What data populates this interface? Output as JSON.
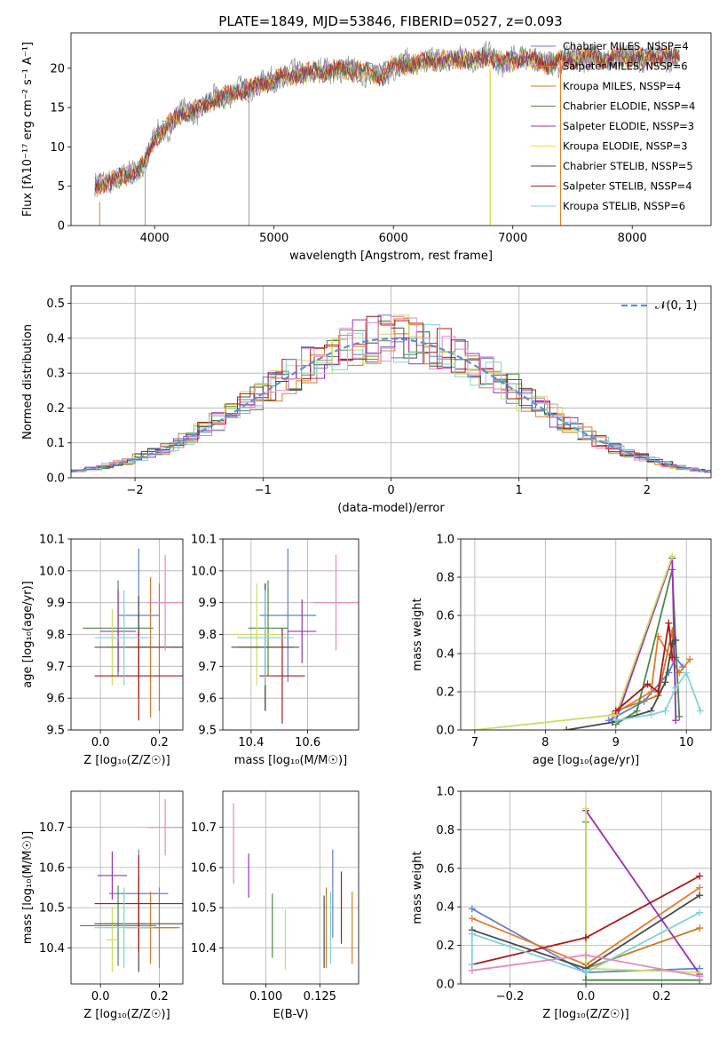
{
  "colors": [
    "#5b7fd6",
    "#e8792a",
    "#c87a1c",
    "#4c8a4c",
    "#9b30b8",
    "#e6e24e",
    "#4a4a4a",
    "#b01818",
    "#7fd3d8",
    "#e888c0",
    "#8a8a8a",
    "#c8e060"
  ],
  "chart_data": [
    {
      "type": "line",
      "title": "PLATE=1849, MJD=53846, FIBERID=0527, z=0.093",
      "xlabel": "wavelength [Angstrom, rest frame]",
      "ylabel": "Flux [fλ10⁻¹⁷ erg cm⁻² s⁻¹ A⁻¹]",
      "xlim": [
        3300,
        8660
      ],
      "ylim": [
        0,
        24.5
      ],
      "xticks": [
        4000,
        5000,
        6000,
        7000,
        8000
      ],
      "yticks": [
        0,
        5,
        10,
        15,
        20
      ],
      "xtick_labels": [
        "4000",
        "5000",
        "6000",
        "7000",
        "8000"
      ],
      "ytick_labels": [
        "0",
        "5",
        "10",
        "15",
        "20"
      ],
      "spectrum_x": [
        3500,
        3600,
        3700,
        3800,
        3900,
        4000,
        4100,
        4200,
        4300,
        4400,
        4500,
        4600,
        4700,
        4800,
        4900,
        5000,
        5100,
        5200,
        5300,
        5400,
        5500,
        5600,
        5700,
        5800,
        5900,
        6000,
        6100,
        6200,
        6300,
        6400,
        6500,
        6600,
        6700,
        6800,
        6900,
        7000,
        7100,
        7200,
        7300,
        7400,
        7500,
        7600,
        7700,
        7800,
        7900,
        8000,
        8100,
        8200,
        8300,
        8400
      ],
      "spectrum_y": [
        5,
        5.5,
        6,
        6.5,
        7.5,
        11,
        12.5,
        14,
        14.5,
        15,
        16,
        16.5,
        17,
        17.5,
        18,
        18.5,
        19,
        19.2,
        19.5,
        19.5,
        19.8,
        19.8,
        19.6,
        19.5,
        19,
        20.3,
        20.5,
        20.5,
        21,
        21,
        21,
        21.2,
        21.2,
        21.5,
        20.8,
        21,
        21.5,
        21,
        20.5,
        21,
        21.2,
        21.5,
        21.5,
        21,
        21.5,
        21.5,
        21.3,
        21.6,
        21.5,
        21.5
      ],
      "legend": [
        "Chabrier MILES, N<sub>SSP</sub>=4",
        "Salpeter MILES, N<sub>SSP</sub>=6",
        "Kroupa MILES, N<sub>SSP</sub>=4",
        "Chabrier ELODIE, N<sub>SSP</sub>=4",
        "Salpeter ELODIE, N<sub>SSP</sub>=3",
        "Kroupa ELODIE, N<sub>SSP</sub>=3",
        "Chabrier STELIB, N<sub>SSP</sub>=5",
        "Salpeter STELIB, N<sub>SSP</sub>=4",
        "Kroupa STELIB, N<sub>SSP</sub>=6"
      ],
      "legend_labels": [
        "Chabrier MILES, NSSP=4",
        "Salpeter MILES, NSSP=6",
        "Kroupa MILES, NSSP=4",
        "Chabrier ELODIE, NSSP=4",
        "Salpeter ELODIE, NSSP=3",
        "Kroupa ELODIE, NSSP=3",
        "Chabrier STELIB, NSSP=5",
        "Salpeter STELIB, NSSP=4",
        "Kroupa STELIB, NSSP=6"
      ],
      "legend_colors": [
        "#5b7fd6",
        "#e8792a",
        "#c87a1c",
        "#4c8a4c",
        "#9b30b8",
        "#e6e24e",
        "#4a4a4a",
        "#b01818",
        "#7fd3d8"
      ]
    },
    {
      "type": "histogram",
      "xlabel": "(data-model)/error",
      "ylabel": "Normed distribution",
      "xlim": [
        -2.5,
        2.5
      ],
      "ylim": [
        0,
        0.55
      ],
      "xticks": [
        -2,
        -1,
        0,
        1,
        2
      ],
      "xtick_labels": [
        "−2",
        "−1",
        "0",
        "1",
        "2"
      ],
      "yticks": [
        0,
        0.1,
        0.2,
        0.3,
        0.4,
        0.5
      ],
      "ytick_labels": [
        "0.0",
        "0.1",
        "0.2",
        "0.3",
        "0.4",
        "0.5"
      ],
      "legend_label": "𝒩(0, 1)"
    },
    {
      "type": "errorbar",
      "xlabel": "Z [log₁₀(Z/Z☉)]",
      "ylabel": "age  [log₁₀(age/yr)]",
      "xlim": [
        -0.1,
        0.28
      ],
      "ylim": [
        9.5,
        10.1
      ],
      "xticks": [
        0,
        0.2
      ],
      "xtick_labels": [
        "0.0",
        "0.2"
      ],
      "yticks": [
        9.5,
        9.6,
        9.7,
        9.8,
        9.9,
        10.0,
        10.1
      ],
      "ytick_labels": [
        "9.5",
        "9.6",
        "9.7",
        "9.8",
        "9.9",
        "10.0",
        "10.1"
      ],
      "points": [
        {
          "x": 0.13,
          "xe": 0.07,
          "y": 9.86,
          "ye": 0.21
        },
        {
          "x": 0.17,
          "xe": 0.1,
          "y": 9.76,
          "ye": 0.22
        },
        {
          "x": 0.2,
          "xe": 0.1,
          "y": 9.76,
          "ye": 0.2
        },
        {
          "x": 0.06,
          "xe": 0.12,
          "y": 9.82,
          "ye": 0.15
        },
        {
          "x": 0.06,
          "xe": 0.06,
          "y": 9.81,
          "ye": 0.13
        },
        {
          "x": 0.04,
          "xe": 0.02,
          "y": 9.76,
          "ye": 0.12
        },
        {
          "x": 0.13,
          "xe": 0.15,
          "y": 9.76,
          "ye": 0.16
        },
        {
          "x": 0.13,
          "xe": 0.15,
          "y": 9.67,
          "ye": 0.14
        },
        {
          "x": 0.08,
          "xe": 0.1,
          "y": 9.79,
          "ye": 0.15
        },
        {
          "x": 0.22,
          "xe": 0.06,
          "y": 9.9,
          "ye": 0.15
        }
      ]
    },
    {
      "type": "errorbar",
      "xlabel": "mass [log₁₀(M/M☉)]",
      "ylabel": "",
      "xlim": [
        10.3,
        10.78
      ],
      "ylim": [
        9.5,
        10.1
      ],
      "xticks": [
        10.4,
        10.6
      ],
      "xtick_labels": [
        "10.4",
        "10.6"
      ],
      "yticks": [
        9.5,
        9.6,
        9.7,
        9.8,
        9.9,
        10.0,
        10.1
      ],
      "ytick_labels": [
        "9.5",
        "9.6",
        "9.7",
        "9.8",
        "9.9",
        "10.0",
        "10.1"
      ],
      "points": [
        {
          "x": 10.53,
          "xe": 0.1,
          "y": 9.86,
          "ye": 0.21
        },
        {
          "x": 10.45,
          "xe": 0.08,
          "y": 9.76,
          "ye": 0.2
        },
        {
          "x": 10.45,
          "xe": 0.1,
          "y": 9.76,
          "ye": 0.2
        },
        {
          "x": 10.46,
          "xe": 0.07,
          "y": 9.82,
          "ye": 0.15
        },
        {
          "x": 10.58,
          "xe": 0.05,
          "y": 9.81,
          "ye": 0.1
        },
        {
          "x": 10.42,
          "xe": 0.08,
          "y": 9.8,
          "ye": 0.16
        },
        {
          "x": 10.45,
          "xe": 0.12,
          "y": 9.76,
          "ye": 0.2
        },
        {
          "x": 10.51,
          "xe": 0.08,
          "y": 9.67,
          "ye": 0.15
        },
        {
          "x": 10.45,
          "xe": 0.1,
          "y": 9.79,
          "ye": 0.15
        },
        {
          "x": 10.7,
          "xe": 0.08,
          "y": 9.9,
          "ye": 0.15
        }
      ]
    },
    {
      "type": "line",
      "xlabel": "age  [log₁₀(age/yr)]",
      "ylabel": "mass weight",
      "xlim": [
        6.8,
        10.35
      ],
      "ylim": [
        0,
        1.0
      ],
      "xticks": [
        7,
        8,
        9,
        10
      ],
      "xtick_labels": [
        "7",
        "8",
        "9",
        "10"
      ],
      "yticks": [
        0,
        0.2,
        0.4,
        0.6,
        0.8,
        1.0
      ],
      "ytick_labels": [
        "0.0",
        "0.2",
        "0.4",
        "0.6",
        "0.8",
        "1.0"
      ],
      "series": [
        {
          "x": [
            8.9,
            9.4,
            9.75,
            9.85,
            9.95
          ],
          "y": [
            0.05,
            0.15,
            0.3,
            0.38,
            0.33
          ]
        },
        {
          "x": [
            8.95,
            9.5,
            9.6,
            9.9,
            10.05
          ],
          "y": [
            0.08,
            0.2,
            0.49,
            0.3,
            0.37
          ]
        },
        {
          "x": [
            9.0,
            9.6,
            9.8,
            9.85
          ],
          "y": [
            0.1,
            0.18,
            0.52,
            0.2
          ]
        },
        {
          "x": [
            9.0,
            9.3,
            9.8,
            9.9
          ],
          "y": [
            0.03,
            0.1,
            0.84,
            0.07
          ]
        },
        {
          "x": [
            9.0,
            9.8,
            9.85
          ],
          "y": [
            0.05,
            0.9,
            0.05
          ]
        },
        {
          "x": [
            7.0,
            9.0,
            9.8
          ],
          "y": [
            0.0,
            0.08,
            0.91
          ]
        },
        {
          "x": [
            8.3,
            8.95,
            9.5,
            9.7,
            9.8,
            9.85
          ],
          "y": [
            0.0,
            0.04,
            0.1,
            0.25,
            0.45,
            0.47
          ]
        },
        {
          "x": [
            9.0,
            9.45,
            9.6,
            9.75,
            9.8
          ],
          "y": [
            0.1,
            0.24,
            0.2,
            0.56,
            0.38
          ]
        },
        {
          "x": [
            9.0,
            9.5,
            9.7,
            9.85,
            10.0,
            10.2
          ],
          "y": [
            0.05,
            0.08,
            0.1,
            0.22,
            0.3,
            0.1
          ]
        }
      ]
    },
    {
      "type": "errorbar",
      "xlabel": "Z [log₁₀(Z/Z☉)]",
      "ylabel": "mass [log₁₀(M/M☉)]",
      "xlim": [
        -0.1,
        0.28
      ],
      "ylim": [
        10.31,
        10.79
      ],
      "xticks": [
        0,
        0.2
      ],
      "xtick_labels": [
        "0.0",
        "0.2"
      ],
      "yticks": [
        10.4,
        10.5,
        10.6,
        10.7
      ],
      "ytick_labels": [
        "10.4",
        "10.5",
        "10.6",
        "10.7"
      ],
      "points": [
        {
          "x": 0.13,
          "xe": 0.1,
          "y": 10.535,
          "ye": 0.11
        },
        {
          "x": 0.17,
          "xe": 0.09,
          "y": 10.45,
          "ye": 0.09
        },
        {
          "x": 0.2,
          "xe": 0.07,
          "y": 10.45,
          "ye": 0.1
        },
        {
          "x": 0.06,
          "xe": 0.13,
          "y": 10.455,
          "ye": 0.1
        },
        {
          "x": 0.04,
          "xe": 0.05,
          "y": 10.58,
          "ye": 0.06
        },
        {
          "x": 0.04,
          "xe": 0.02,
          "y": 10.42,
          "ye": 0.08
        },
        {
          "x": 0.13,
          "xe": 0.15,
          "y": 10.46,
          "ye": 0.12
        },
        {
          "x": 0.13,
          "xe": 0.15,
          "y": 10.51,
          "ye": 0.12
        },
        {
          "x": 0.08,
          "xe": 0.1,
          "y": 10.45,
          "ye": 0.1
        },
        {
          "x": 0.22,
          "xe": 0.06,
          "y": 10.7,
          "ye": 0.07
        }
      ]
    },
    {
      "type": "errorbar",
      "xlabel": "E(B-V)",
      "ylabel": "",
      "xlim": [
        0.08,
        0.143
      ],
      "ylim": [
        10.31,
        10.79
      ],
      "xticks": [
        0.1,
        0.125
      ],
      "xtick_labels": [
        "0.100",
        "0.125"
      ],
      "yticks": [
        10.4,
        10.5,
        10.6,
        10.7
      ],
      "ytick_labels": [
        "10.4",
        "10.5",
        "10.6",
        "10.7"
      ],
      "points": [
        {
          "x": 0.131,
          "xe": 0,
          "y": 10.535,
          "ye": 0.11
        },
        {
          "x": 0.14,
          "xe": 0,
          "y": 10.45,
          "ye": 0.09
        },
        {
          "x": 0.128,
          "xe": 0,
          "y": 10.45,
          "ye": 0.1
        },
        {
          "x": 0.103,
          "xe": 0,
          "y": 10.455,
          "ye": 0.08
        },
        {
          "x": 0.092,
          "xe": 0,
          "y": 10.58,
          "ye": 0.055
        },
        {
          "x": 0.109,
          "xe": 0,
          "y": 10.42,
          "ye": 0.075
        },
        {
          "x": 0.127,
          "xe": 0,
          "y": 10.44,
          "ye": 0.09
        },
        {
          "x": 0.135,
          "xe": 0,
          "y": 10.5,
          "ye": 0.09
        },
        {
          "x": 0.13,
          "xe": 0,
          "y": 10.45,
          "ye": 0.09
        },
        {
          "x": 0.085,
          "xe": 0,
          "y": 10.66,
          "ye": 0.1
        }
      ]
    },
    {
      "type": "line",
      "xlabel": "Z [log₁₀(Z/Z☉)]",
      "ylabel": "mass weight",
      "xlim": [
        -0.33,
        0.33
      ],
      "ylim": [
        0,
        1.0
      ],
      "xticks": [
        -0.2,
        0,
        0.2
      ],
      "xtick_labels": [
        "−0.2",
        "0.0",
        "0.2"
      ],
      "yticks": [
        0,
        0.2,
        0.4,
        0.6,
        0.8,
        1.0
      ],
      "ytick_labels": [
        "0.0",
        "0.2",
        "0.4",
        "0.6",
        "0.8",
        "1.0"
      ],
      "series": [
        {
          "x": [
            -0.3,
            0.0,
            0.3
          ],
          "y": [
            0.39,
            0.06,
            0.08
          ]
        },
        {
          "x": [
            -0.3,
            0.0,
            0.3
          ],
          "y": [
            0.34,
            0.1,
            0.5
          ]
        },
        {
          "x": [
            0.0,
            0.3
          ],
          "y": [
            0.08,
            0.29
          ]
        },
        {
          "x": [
            0.0,
            0.0,
            0.3
          ],
          "y": [
            0.84,
            0.02,
            0.02
          ]
        },
        {
          "x": [
            0.0,
            0.3
          ],
          "y": [
            0.9,
            0.05
          ]
        },
        {
          "x": [
            0.0,
            0.0,
            0.3
          ],
          "y": [
            0.91,
            0.08,
            0.06
          ]
        },
        {
          "x": [
            -0.3,
            0.0,
            0.3
          ],
          "y": [
            0.28,
            0.08,
            0.46
          ]
        },
        {
          "x": [
            -0.3,
            0.0,
            0.3
          ],
          "y": [
            0.1,
            0.24,
            0.56
          ]
        },
        {
          "x": [
            -0.3,
            -0.3,
            0.0,
            0.3
          ],
          "y": [
            0.1,
            0.26,
            0.06,
            0.37
          ]
        },
        {
          "x": [
            -0.3,
            0.0,
            0.3
          ],
          "y": [
            0.07,
            0.15,
            0.04
          ]
        }
      ]
    }
  ]
}
